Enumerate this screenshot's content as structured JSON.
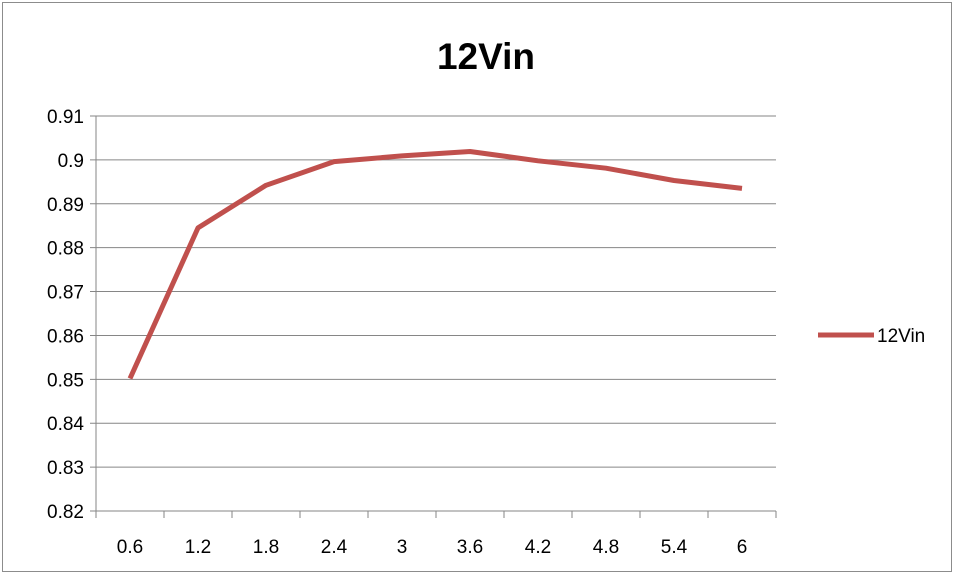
{
  "chart_data": {
    "type": "line",
    "title": "12Vin",
    "xlabel": "",
    "ylabel": "",
    "categories": [
      "0.6",
      "1.2",
      "1.8",
      "2.4",
      "3",
      "3.6",
      "4.2",
      "4.8",
      "5.4",
      "6"
    ],
    "series": [
      {
        "name": "12Vin",
        "color": "#c0504d",
        "values": [
          0.8502,
          0.8845,
          0.8942,
          0.8996,
          0.9009,
          0.9019,
          0.8998,
          0.8981,
          0.8953,
          0.8935
        ]
      }
    ],
    "ylim": [
      0.82,
      0.91
    ],
    "yticks": [
      "0.91",
      "0.9",
      "0.89",
      "0.88",
      "0.87",
      "0.86",
      "0.85",
      "0.84",
      "0.83",
      "0.82"
    ],
    "grid": true,
    "legend_position": "right"
  }
}
